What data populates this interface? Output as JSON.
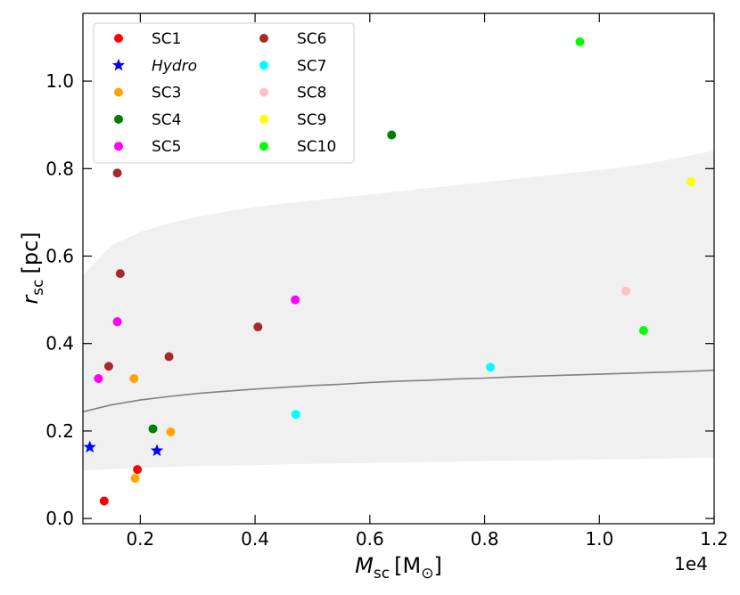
{
  "chart_data": {
    "type": "scatter",
    "xlabel_main": "M",
    "xlabel_sub": "sc",
    "xlabel_unit": "[M",
    "xlabel_unit_sub": "⊙",
    "xlabel_unit_close": "]",
    "ylabel_main": "r",
    "ylabel_sub": "sc",
    "ylabel_unit": "[pc]",
    "x_offset_label": "1e4",
    "xlim": [
      0.1,
      1.2
    ],
    "ylim": [
      -0.012,
      1.155
    ],
    "xticks": [
      0.2,
      0.4,
      0.6,
      0.8,
      1.0,
      1.2
    ],
    "xtick_labels": [
      "0.2",
      "0.4",
      "0.6",
      "0.8",
      "1.0",
      "1.2"
    ],
    "yticks": [
      0.0,
      0.2,
      0.4,
      0.6,
      0.8,
      1.0
    ],
    "ytick_labels": [
      "0.0",
      "0.2",
      "0.4",
      "0.6",
      "0.8",
      "1.0"
    ],
    "grid": false,
    "legend_position": "top-left",
    "series": [
      {
        "name": "SC1",
        "color": "#ff0000",
        "marker": "circle",
        "x": [
          0.137,
          0.195
        ],
        "y": [
          0.04,
          0.112
        ]
      },
      {
        "name": "Hydro",
        "color": "#0000ff",
        "marker": "star",
        "italic": true,
        "x": [
          0.112,
          0.229
        ],
        "y": [
          0.163,
          0.155
        ]
      },
      {
        "name": "SC3",
        "color": "#ffa500",
        "marker": "circle",
        "x": [
          0.189,
          0.191,
          0.253
        ],
        "y": [
          0.32,
          0.092,
          0.198
        ]
      },
      {
        "name": "SC4",
        "color": "#008000",
        "marker": "circle",
        "x": [
          0.222,
          0.638
        ],
        "y": [
          0.205,
          0.877
        ]
      },
      {
        "name": "SC5",
        "color": "#ff00ff",
        "marker": "circle",
        "x": [
          0.127,
          0.16,
          0.47
        ],
        "y": [
          0.32,
          0.45,
          0.5
        ]
      },
      {
        "name": "SC6",
        "color": "#a52a2a",
        "marker": "circle",
        "x": [
          0.16,
          0.165,
          0.145,
          0.25,
          0.405
        ],
        "y": [
          0.79,
          0.56,
          0.348,
          0.37,
          0.438
        ]
      },
      {
        "name": "SC7",
        "color": "#00ffff",
        "marker": "circle",
        "x": [
          0.471,
          0.81
        ],
        "y": [
          0.238,
          0.346
        ]
      },
      {
        "name": "SC8",
        "color": "#ffc0cb",
        "marker": "circle",
        "x": [
          1.046
        ],
        "y": [
          0.52
        ]
      },
      {
        "name": "SC9",
        "color": "#ffff00",
        "marker": "circle",
        "x": [
          1.16
        ],
        "y": [
          0.77
        ]
      },
      {
        "name": "SC10",
        "color": "#00ff00",
        "marker": "circle",
        "x": [
          0.966,
          1.077
        ],
        "y": [
          1.09,
          0.43
        ]
      }
    ],
    "fit_curve": {
      "color": "#808080",
      "x": [
        0.1,
        0.15,
        0.2,
        0.25,
        0.3,
        0.35,
        0.4,
        0.45,
        0.5,
        0.55,
        0.6,
        0.65,
        0.7,
        0.75,
        0.8,
        0.85,
        0.9,
        0.95,
        1.0,
        1.05,
        1.1,
        1.15,
        1.2
      ],
      "y": [
        0.244,
        0.26,
        0.271,
        0.279,
        0.286,
        0.291,
        0.296,
        0.3,
        0.304,
        0.307,
        0.311,
        0.314,
        0.316,
        0.319,
        0.321,
        0.324,
        0.326,
        0.328,
        0.33,
        0.332,
        0.334,
        0.336,
        0.339
      ],
      "band_color": "#f0f0f0",
      "band_lower": [
        0.11,
        0.113,
        0.116,
        0.118,
        0.12,
        0.121,
        0.122,
        0.124,
        0.125,
        0.126,
        0.127,
        0.128,
        0.129,
        0.13,
        0.131,
        0.132,
        0.133,
        0.134,
        0.135,
        0.136,
        0.137,
        0.138,
        0.139
      ],
      "band_upper": [
        0.556,
        0.625,
        0.655,
        0.675,
        0.69,
        0.702,
        0.712,
        0.72,
        0.727,
        0.734,
        0.741,
        0.748,
        0.755,
        0.762,
        0.769,
        0.776,
        0.783,
        0.79,
        0.797,
        0.805,
        0.815,
        0.828,
        0.841
      ]
    }
  }
}
